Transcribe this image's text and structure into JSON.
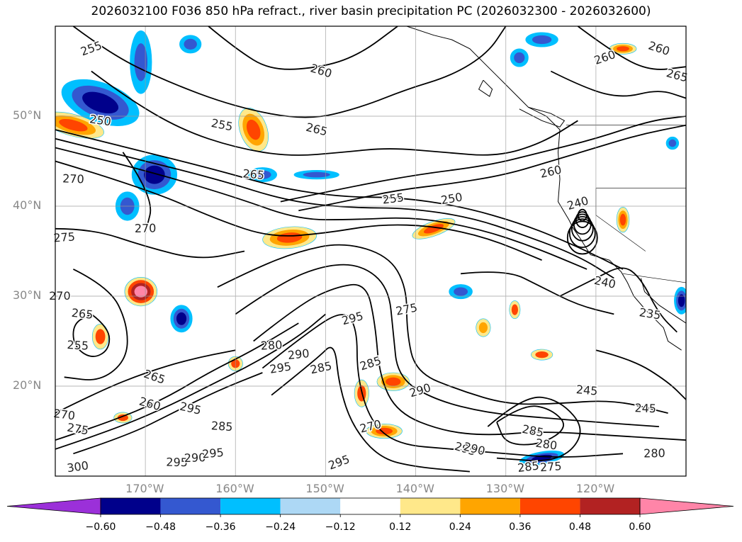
{
  "title": "2026032100 F036 850 hPa refract., river basin precipitation PC (2026032300 - 2026032600)",
  "map": {
    "lon_range": [
      -180,
      -110
    ],
    "lat_range": [
      10,
      60
    ],
    "grid": true,
    "lat_labels": [
      {
        "lat": 50,
        "text": "50°N"
      },
      {
        "lat": 40,
        "text": "40°N"
      },
      {
        "lat": 30,
        "text": "30°N"
      },
      {
        "lat": 20,
        "text": "20°N"
      }
    ],
    "lon_labels": [
      {
        "lon": -170,
        "text": "170°W"
      },
      {
        "lon": -160,
        "text": "160°W"
      },
      {
        "lon": -150,
        "text": "150°W"
      },
      {
        "lon": -140,
        "text": "140°W"
      },
      {
        "lon": -130,
        "text": "130°W"
      },
      {
        "lon": -120,
        "text": "120°W"
      }
    ],
    "contour_labels": [
      {
        "text": "255",
        "lon": -176,
        "lat": 57.5
      },
      {
        "text": "260",
        "lon": -150.5,
        "lat": 55
      },
      {
        "text": "265",
        "lon": -151,
        "lat": 48.5
      },
      {
        "text": "255",
        "lon": -161.5,
        "lat": 49
      },
      {
        "text": "250",
        "lon": -175,
        "lat": 49.5
      },
      {
        "text": "265",
        "lon": -158,
        "lat": 43.5
      },
      {
        "text": "270",
        "lon": -178,
        "lat": 43
      },
      {
        "text": "270",
        "lon": -170,
        "lat": 37.5
      },
      {
        "text": "275",
        "lon": -179,
        "lat": 36.5
      },
      {
        "text": "255",
        "lon": -142.5,
        "lat": 40.8
      },
      {
        "text": "250",
        "lon": -136,
        "lat": 40.8
      },
      {
        "text": "260",
        "lon": -125,
        "lat": 43.8
      },
      {
        "text": "240",
        "lon": -122,
        "lat": 40.3
      },
      {
        "text": "260",
        "lon": -119,
        "lat": 56.5
      },
      {
        "text": "260",
        "lon": -113,
        "lat": 57.5
      },
      {
        "text": "265",
        "lon": -111,
        "lat": 54.5
      },
      {
        "text": "240",
        "lon": -119,
        "lat": 31.5
      },
      {
        "text": "235",
        "lon": -114,
        "lat": 28
      },
      {
        "text": "265",
        "lon": -177,
        "lat": 28
      },
      {
        "text": "255",
        "lon": -177.5,
        "lat": 24.5
      },
      {
        "text": "270",
        "lon": -179.5,
        "lat": 30
      },
      {
        "text": "280",
        "lon": -156,
        "lat": 24.5
      },
      {
        "text": "290",
        "lon": -153,
        "lat": 23.5
      },
      {
        "text": "295",
        "lon": -155,
        "lat": 22
      },
      {
        "text": "285",
        "lon": -150.5,
        "lat": 22
      },
      {
        "text": "295",
        "lon": -147,
        "lat": 27.5
      },
      {
        "text": "285",
        "lon": -145,
        "lat": 22.5
      },
      {
        "text": "265",
        "lon": -169,
        "lat": 21
      },
      {
        "text": "260",
        "lon": -169.5,
        "lat": 18
      },
      {
        "text": "295",
        "lon": -165,
        "lat": 17.5
      },
      {
        "text": "275",
        "lon": -177.5,
        "lat": 15.2
      },
      {
        "text": "270",
        "lon": -179,
        "lat": 16.8
      },
      {
        "text": "285",
        "lon": -161.5,
        "lat": 15.5
      },
      {
        "text": "295",
        "lon": -166.5,
        "lat": 11.5
      },
      {
        "text": "290",
        "lon": -164.5,
        "lat": 12
      },
      {
        "text": "295",
        "lon": -162.5,
        "lat": 12.5
      },
      {
        "text": "300",
        "lon": -177.5,
        "lat": 11
      },
      {
        "text": "275",
        "lon": -141,
        "lat": 28.5
      },
      {
        "text": "270",
        "lon": -145,
        "lat": 15.5
      },
      {
        "text": "290",
        "lon": -139.5,
        "lat": 19.5
      },
      {
        "text": "295",
        "lon": -148.5,
        "lat": 11.5
      },
      {
        "text": "295",
        "lon": -134.5,
        "lat": 13
      },
      {
        "text": "290",
        "lon": -133.5,
        "lat": 13
      },
      {
        "text": "285",
        "lon": -127,
        "lat": 15
      },
      {
        "text": "280",
        "lon": -125.5,
        "lat": 13.5
      },
      {
        "text": "245",
        "lon": -121,
        "lat": 19.5
      },
      {
        "text": "245",
        "lon": -114.5,
        "lat": 17.5
      },
      {
        "text": "280",
        "lon": -113.5,
        "lat": 12.5
      },
      {
        "text": "275",
        "lon": -125,
        "lat": 11
      },
      {
        "text": "285",
        "lon": -127.5,
        "lat": 11
      }
    ]
  },
  "colorbar": {
    "ticks": [
      "-0.60",
      "-0.48",
      "-0.36",
      "-0.24",
      "-0.12",
      "0.12",
      "0.24",
      "0.36",
      "0.48",
      "0.60"
    ],
    "colors": {
      "under": "#9b30d9",
      "bins": [
        "#00008b",
        "#3458d0",
        "#00bfff",
        "#add8f5",
        "#ffffff",
        "#ffe88a",
        "#ffa500",
        "#ff4500",
        "#b22222"
      ],
      "over": "#ff85a8"
    }
  },
  "shading_colors": {
    "ocean": "#ffffff",
    "negative_strong": "#00008b",
    "negative_mid": "#3458d0",
    "negative_weak": "#00bfff",
    "positive_weak": "#ffe88a",
    "positive_mid": "#ffa500",
    "positive_strong": "#ff4500",
    "positive_extreme": "#b22222",
    "over": "#ff85a8"
  }
}
